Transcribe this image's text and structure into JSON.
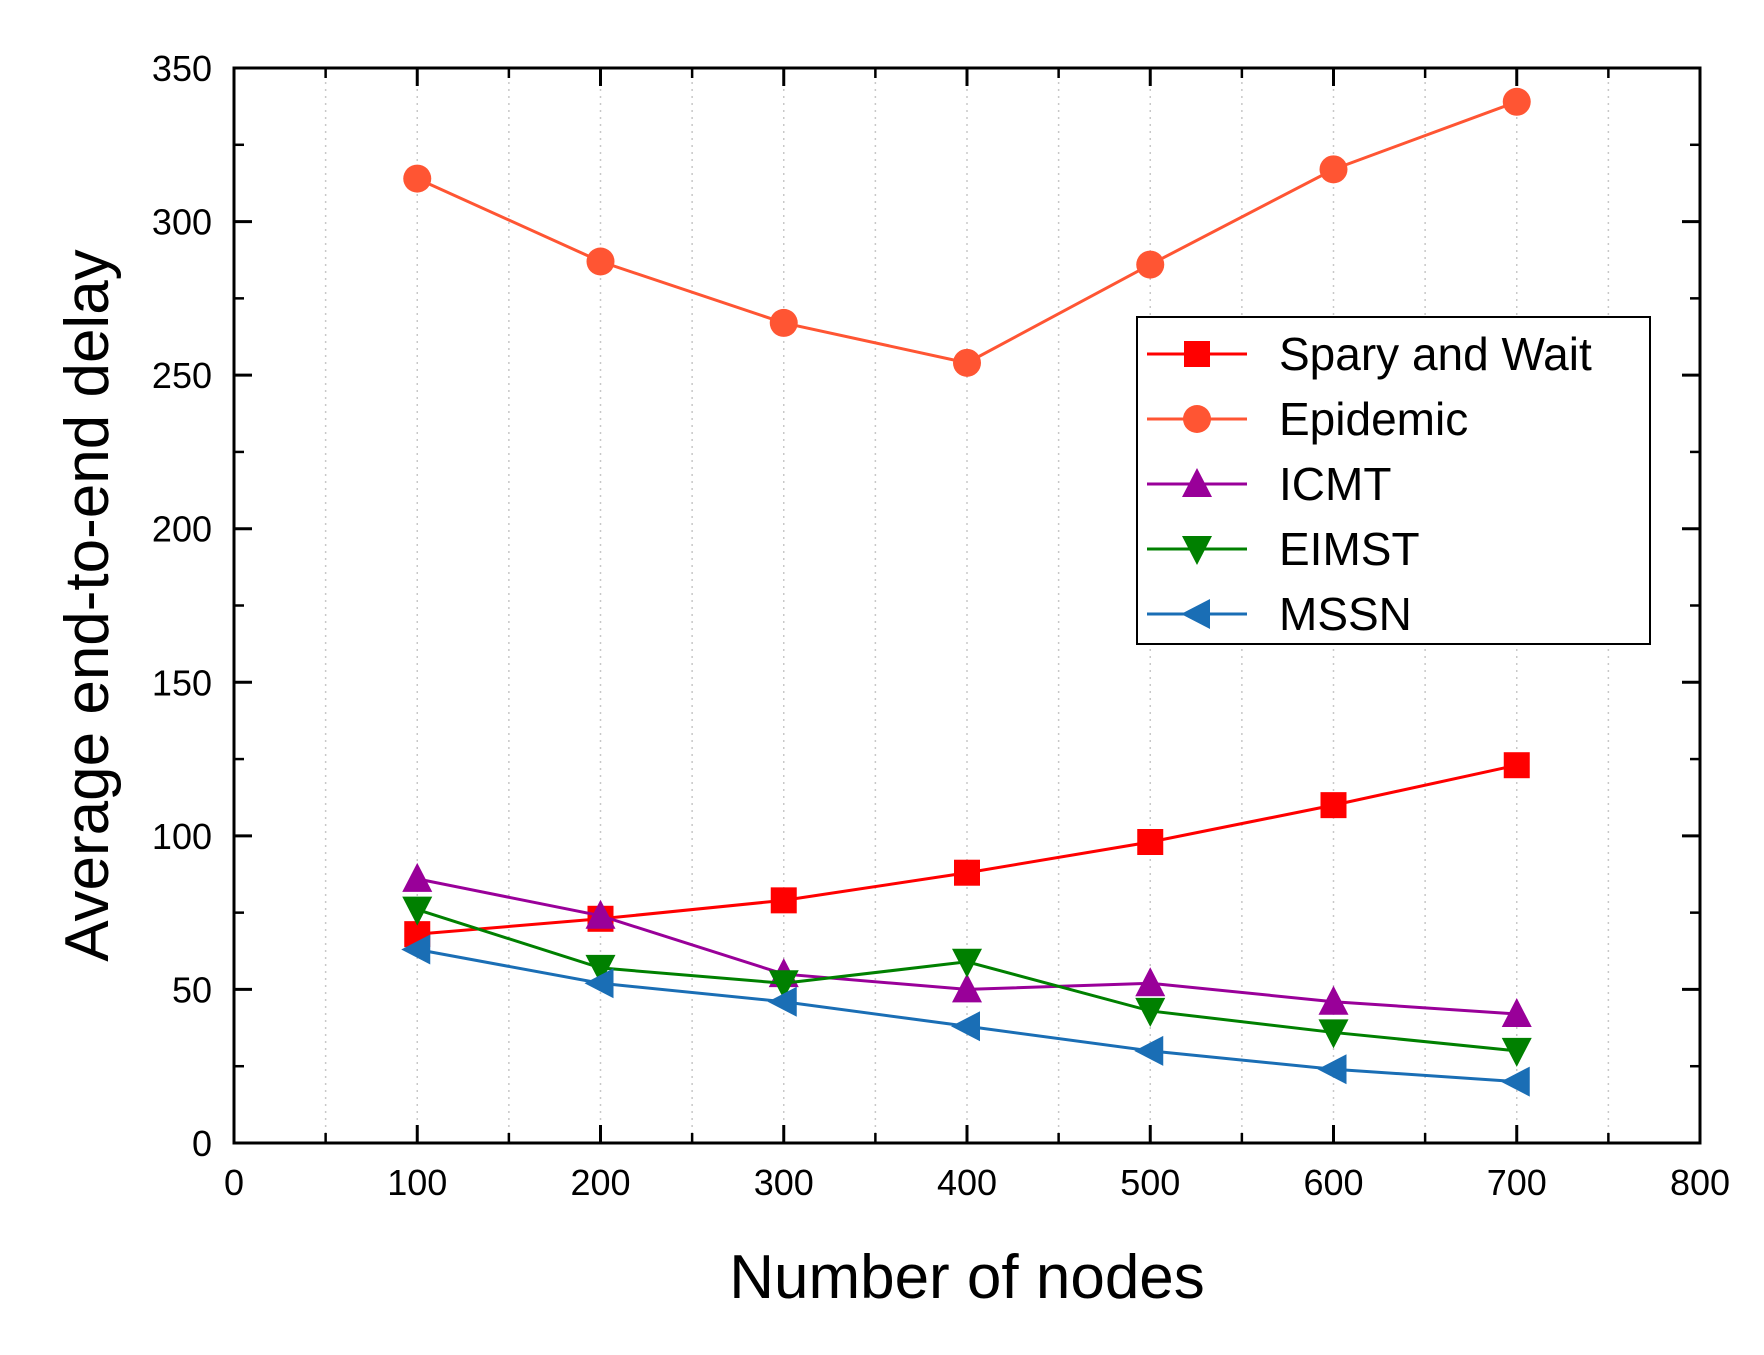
{
  "chart_data": {
    "type": "line",
    "title": "",
    "xlabel": "Number of nodes",
    "ylabel": "Average end-to-end delay",
    "xlim": [
      0,
      800
    ],
    "ylim": [
      0,
      350
    ],
    "x_ticks": [
      0,
      100,
      200,
      300,
      400,
      500,
      600,
      700,
      800
    ],
    "y_ticks": [
      0,
      50,
      100,
      150,
      200,
      250,
      300,
      350
    ],
    "x_tick_labels": [
      "0",
      "100",
      "200",
      "300",
      "400",
      "500",
      "600",
      "700",
      "800"
    ],
    "y_tick_labels": [
      "0",
      "50",
      "100",
      "150",
      "200",
      "250",
      "300",
      "350"
    ],
    "x_minor_ticks": [
      50,
      150,
      250,
      350,
      450,
      550,
      650,
      750
    ],
    "y_minor_ticks": [
      25,
      75,
      125,
      175,
      225,
      275,
      325
    ],
    "grid": "vertical-dotted",
    "legend_position": "top-right",
    "x": [
      100,
      200,
      300,
      400,
      500,
      600,
      700
    ],
    "series": [
      {
        "name": "Spary and Wait",
        "marker": "square",
        "color": "#ff0000",
        "values": [
          68,
          73,
          79,
          88,
          98,
          110,
          123
        ]
      },
      {
        "name": "Epidemic",
        "marker": "circle",
        "color": "#ff5533",
        "values": [
          314,
          287,
          267,
          254,
          286,
          317,
          339
        ]
      },
      {
        "name": "ICMT",
        "marker": "triangle-up",
        "color": "#990099",
        "values": [
          86,
          74,
          55,
          50,
          52,
          46,
          42
        ]
      },
      {
        "name": "EIMST",
        "marker": "triangle-down",
        "color": "#008000",
        "values": [
          76,
          57,
          52,
          59,
          43,
          36,
          30
        ]
      },
      {
        "name": "MSSN",
        "marker": "triangle-left",
        "color": "#1a6eb5",
        "values": [
          63,
          52,
          46,
          38,
          30,
          24,
          20
        ]
      }
    ]
  }
}
